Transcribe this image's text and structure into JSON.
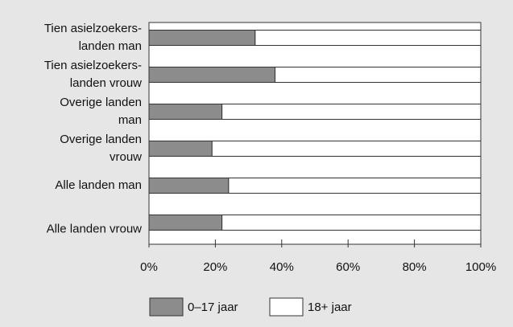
{
  "chart_data": {
    "type": "stacked_barh",
    "categories": [
      "Tien asielzoekers-\nlanden man",
      "Tien asielzoekers-\nlanden vrouw",
      "Overige landen\nman",
      "Overige landen\nvrouw",
      "Alle landen man",
      "Alle landen vrouw"
    ],
    "series": [
      {
        "name": "0–17 jaar",
        "color": "#8c8c8c",
        "values": [
          32,
          38,
          22,
          19,
          24,
          22
        ]
      },
      {
        "name": "18+ jaar",
        "color": "#ffffff",
        "values": [
          68,
          62,
          78,
          81,
          76,
          78
        ]
      }
    ],
    "xlim": [
      0,
      100
    ],
    "xticks": [
      {
        "value": 0,
        "label": "0%"
      },
      {
        "value": 20,
        "label": "20%"
      },
      {
        "value": 40,
        "label": "40%"
      },
      {
        "value": 60,
        "label": "60%"
      },
      {
        "value": 80,
        "label": "80%"
      },
      {
        "value": 100,
        "label": "100%"
      }
    ],
    "legend": "bottom"
  }
}
